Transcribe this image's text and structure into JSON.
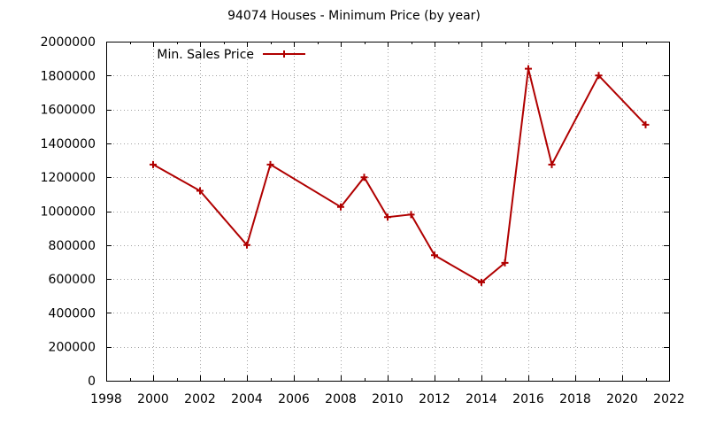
{
  "chart_data": {
    "type": "line",
    "title": "94074 Houses - Minimum Price (by year)",
    "xlabel": "",
    "ylabel": "",
    "xlim": [
      1998,
      2022
    ],
    "ylim": [
      0,
      2000000
    ],
    "xticks": [
      "1998",
      "2000",
      "2002",
      "2004",
      "2006",
      "2008",
      "2010",
      "2012",
      "2014",
      "2016",
      "2018",
      "2020",
      "2022"
    ],
    "yticks": [
      "0",
      "200000",
      "400000",
      "600000",
      "800000",
      "1000000",
      "1200000",
      "1400000",
      "1600000",
      "1800000",
      "2000000"
    ],
    "grid": true,
    "legend_position": "top-left",
    "series": [
      {
        "name": "Min. Sales Price",
        "color": "#b00000",
        "marker": "plus",
        "x": [
          2000,
          2002,
          2004,
          2005,
          2008,
          2009,
          2010,
          2011,
          2012,
          2014,
          2015,
          2016,
          2017,
          2019,
          2021
        ],
        "y": [
          1275000,
          1120000,
          800000,
          1275000,
          1025000,
          1200000,
          965000,
          980000,
          740000,
          580000,
          695000,
          1840000,
          1275000,
          1800000,
          1510000
        ]
      }
    ]
  }
}
